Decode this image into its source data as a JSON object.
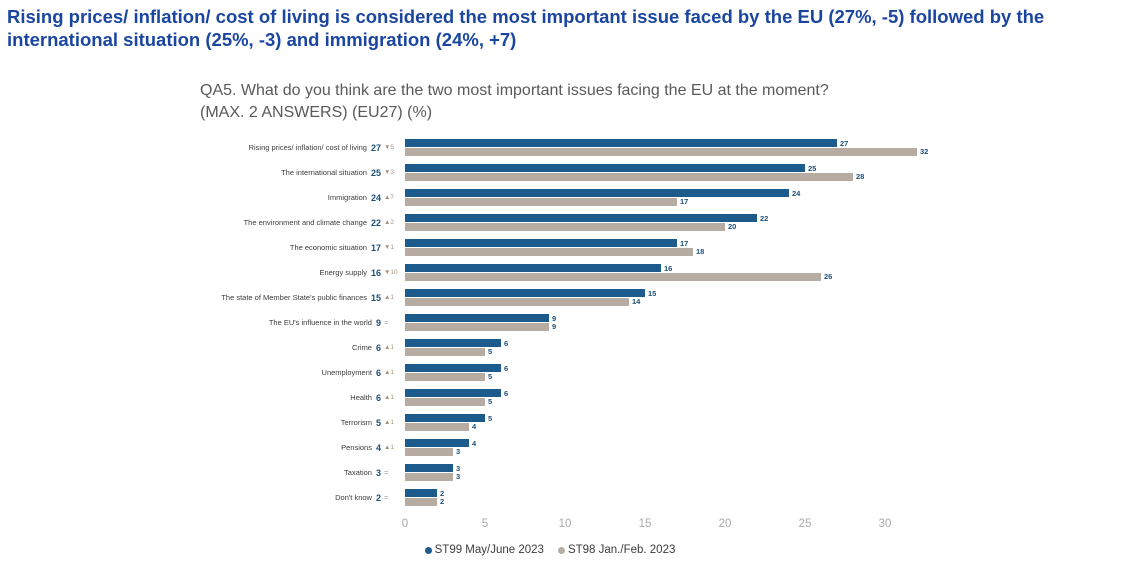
{
  "header": {
    "title": "Rising prices/ inflation/ cost of living is considered the most important issue faced by the EU (27%, -5) followed by the international situation (25%, -3) and immigration (24%, +7)"
  },
  "colors": {
    "title": "#1b46a0",
    "question": "#595959",
    "st99_bar": "#1e5b8d",
    "st98_bar": "#b6aca2",
    "value_label": "#1d4e79",
    "change_up_down": "#a8947c",
    "change_equal": "#9a9a9a",
    "axis_tick": "#a9a9a9"
  },
  "chart_data": {
    "type": "bar",
    "orientation": "horizontal",
    "question": "QA5. What do you think are the two most important issues facing the EU at the moment? (MAX. 2 ANSWERS) (EU27) (%)",
    "categories": [
      "Rising prices/ inflation/ cost of living",
      "The international situation",
      "Immigration",
      "The environment and climate change",
      "The economic situation",
      "Energy supply",
      "The state of Member State's public finances",
      "The EU's influence in the world",
      "Crime",
      "Unemployment",
      "Health",
      "Terrorism",
      "Pensions",
      "Taxation",
      "Don't know"
    ],
    "series": [
      {
        "name": "ST99 May/June 2023",
        "color": "#1e5b8d",
        "values": [
          27,
          25,
          24,
          22,
          17,
          16,
          15,
          9,
          6,
          6,
          6,
          5,
          4,
          3,
          2
        ]
      },
      {
        "name": "ST98 Jan./Feb. 2023",
        "color": "#b6aca2",
        "values": [
          32,
          28,
          17,
          20,
          18,
          26,
          14,
          9,
          5,
          5,
          5,
          4,
          3,
          3,
          2
        ]
      }
    ],
    "changes": [
      "-5",
      "-3",
      "+7",
      "+2",
      "-1",
      "-10",
      "+1",
      "=",
      "+1",
      "+1",
      "+1",
      "+1",
      "+1",
      "=",
      "="
    ],
    "xlabel": "",
    "ylabel": "",
    "xlim": [
      0,
      30
    ],
    "xticks": [
      0,
      5,
      10,
      15,
      20,
      25,
      30
    ],
    "grid": false,
    "legend_position": "bottom"
  }
}
